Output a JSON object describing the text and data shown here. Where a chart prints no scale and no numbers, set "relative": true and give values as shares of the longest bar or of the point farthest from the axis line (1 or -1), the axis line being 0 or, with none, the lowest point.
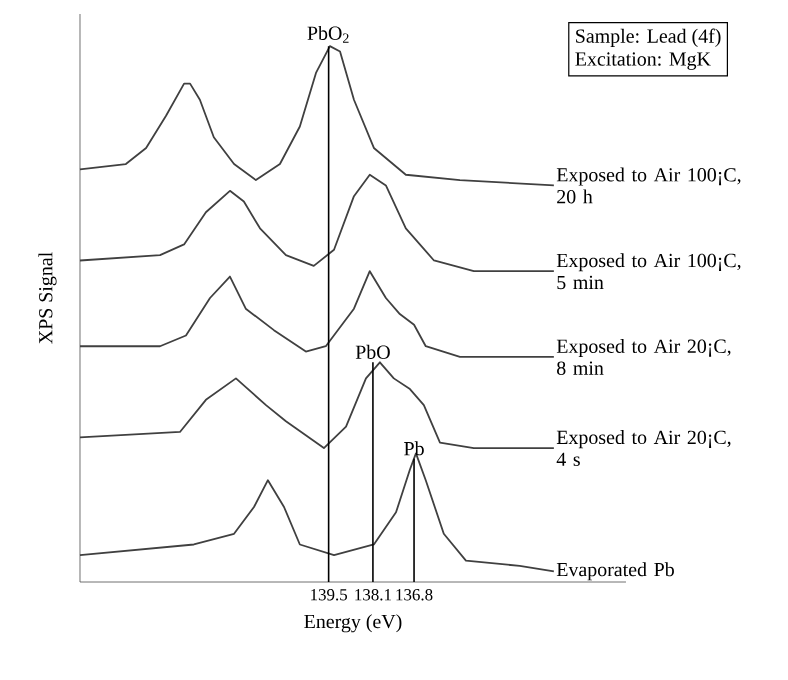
{
  "chart_data": {
    "type": "line",
    "relative": true,
    "xlabel": "Energy (eV)",
    "ylabel": "XPS Signal",
    "xlim": [
      147.36,
      130.1
    ],
    "xticks": [
      139.5,
      138.1,
      136.8
    ],
    "marker": "none",
    "legend": false,
    "series": [
      {
        "name": "Exposed to Air 100¡C, 20 h",
        "color": "#404040",
        "x": [
          147.36,
          145.91,
          145.27,
          144.64,
          144.07,
          143.88,
          143.57,
          143.13,
          142.49,
          141.8,
          141.04,
          140.41,
          139.9,
          139.46,
          139.14,
          138.7,
          138.07,
          137.06,
          135.35,
          132.38
        ],
        "values": [
          0.77,
          0.78,
          0.81,
          0.87,
          0.93,
          0.93,
          0.9,
          0.83,
          0.78,
          0.75,
          0.78,
          0.85,
          0.95,
          1.0,
          0.99,
          0.9,
          0.81,
          0.76,
          0.75,
          0.74
        ]
      },
      {
        "name": "Exposed to Air 100¡C, 5 min",
        "color": "#404040",
        "x": [
          147.36,
          144.83,
          144.07,
          143.38,
          142.62,
          142.18,
          141.67,
          140.85,
          139.97,
          139.33,
          138.7,
          138.2,
          137.69,
          137.06,
          136.17,
          134.91,
          132.38
        ],
        "values": [
          0.6,
          0.61,
          0.63,
          0.69,
          0.73,
          0.71,
          0.66,
          0.61,
          0.59,
          0.62,
          0.72,
          0.76,
          0.74,
          0.66,
          0.6,
          0.58,
          0.58
        ]
      },
      {
        "name": "Exposed to Air 20¡C, 8 min",
        "color": "#404040",
        "x": [
          147.36,
          144.83,
          144.01,
          143.25,
          142.62,
          142.12,
          141.23,
          140.22,
          139.59,
          138.7,
          138.2,
          137.69,
          137.25,
          136.8,
          136.43,
          135.35,
          132.38
        ],
        "values": [
          0.44,
          0.44,
          0.46,
          0.53,
          0.57,
          0.51,
          0.47,
          0.43,
          0.44,
          0.51,
          0.58,
          0.53,
          0.5,
          0.48,
          0.44,
          0.42,
          0.42
        ]
      },
      {
        "name": "Exposed to Air 20¡C, 4 s",
        "color": "#404040",
        "x": [
          147.36,
          144.2,
          143.38,
          142.43,
          141.86,
          141.48,
          140.85,
          139.65,
          138.95,
          138.32,
          137.88,
          137.44,
          136.93,
          136.49,
          135.98,
          134.91,
          132.38
        ],
        "values": [
          0.27,
          0.28,
          0.34,
          0.38,
          0.35,
          0.33,
          0.3,
          0.25,
          0.29,
          0.38,
          0.41,
          0.38,
          0.36,
          0.33,
          0.26,
          0.25,
          0.25
        ]
      },
      {
        "name": "Evaporated Pb",
        "color": "#404040",
        "x": [
          147.36,
          143.76,
          142.49,
          141.86,
          141.42,
          140.91,
          140.41,
          139.33,
          138.07,
          137.37,
          136.93,
          136.74,
          136.43,
          135.86,
          135.16,
          133.46,
          132.38
        ],
        "values": [
          0.05,
          0.07,
          0.09,
          0.14,
          0.19,
          0.14,
          0.07,
          0.05,
          0.07,
          0.13,
          0.21,
          0.24,
          0.19,
          0.09,
          0.04,
          0.03,
          0.02
        ]
      }
    ],
    "annotations": [
      {
        "text": "PbO$_{2}$",
        "x": 139.5,
        "y": 1.0
      },
      {
        "text": "PbO",
        "x": 138.1,
        "y": 0.41
      },
      {
        "text": "Pb",
        "x": 136.8,
        "y": 0.23
      },
      "Sample: Lead (4f)",
      "Excitation: MgK"
    ]
  }
}
